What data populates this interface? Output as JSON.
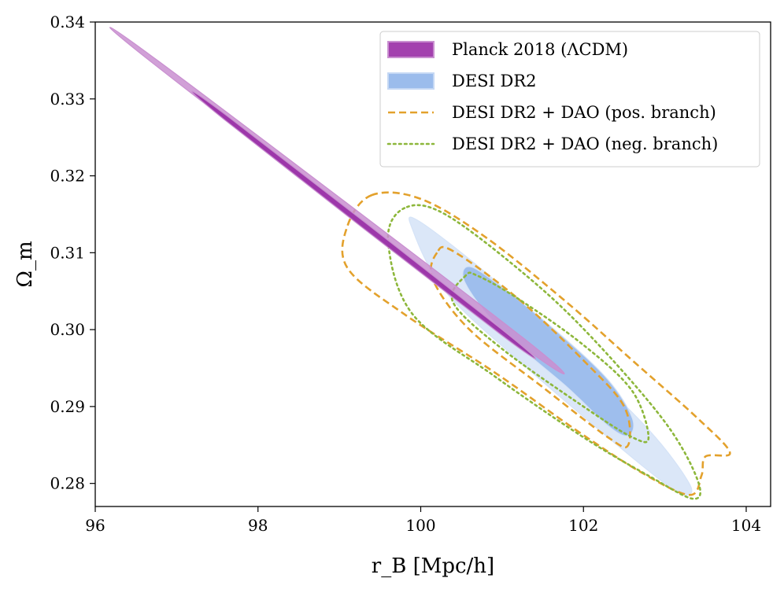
{
  "chart_data": {
    "type": "contour",
    "title": "",
    "xlabel": "r_B [Mpc/h]",
    "ylabel": "Ω_m",
    "xlim": [
      96,
      104.3
    ],
    "ylim": [
      0.277,
      0.34
    ],
    "xticks": [
      96,
      98,
      100,
      102,
      104
    ],
    "yticks": [
      0.28,
      0.29,
      0.3,
      0.31,
      0.32,
      0.33,
      0.34
    ],
    "xtick_labels": [
      "96",
      "98",
      "100",
      "102",
      "104"
    ],
    "ytick_labels": [
      "0.28",
      "0.29",
      "0.30",
      "0.31",
      "0.32",
      "0.33",
      "0.34"
    ],
    "series": [
      {
        "name": "Planck 2018 (ΛCDM)",
        "style": "filled",
        "inner_color": "#9a32a8",
        "outer_color": "#c98fd0",
        "contours": [
          {
            "level": "68%",
            "points": [
              [
                97.6,
                0.3272
              ],
              [
                97.62,
                0.3278
              ],
              [
                101.0,
                0.3
              ],
              [
                100.98,
                0.2994
              ]
            ]
          },
          {
            "level": "95%",
            "points": [
              [
                96.7,
                0.3347
              ],
              [
                96.78,
                0.3349
              ],
              [
                101.25,
                0.299
              ],
              [
                101.16,
                0.2985
              ]
            ]
          }
        ]
      },
      {
        "name": "DESI DR2",
        "style": "filled",
        "inner_color": "#9bbcec",
        "outer_color": "#d5e3f7",
        "contours": [
          {
            "level": "68%",
            "points": [
              [
                100.6,
                0.3082
              ],
              [
                100.55,
                0.306
              ],
              [
                101.0,
                0.2998
              ],
              [
                101.8,
                0.2925
              ],
              [
                102.3,
                0.2875
              ],
              [
                102.55,
                0.2862
              ],
              [
                102.6,
                0.2885
              ],
              [
                102.3,
                0.2935
              ],
              [
                101.7,
                0.2995
              ],
              [
                101.0,
                0.3055
              ]
            ]
          },
          {
            "level": "95%",
            "points": [
              [
                99.98,
                0.3141
              ],
              [
                99.9,
                0.313
              ],
              [
                100.3,
                0.305
              ],
              [
                101.2,
                0.296
              ],
              [
                102.3,
                0.286
              ],
              [
                103.0,
                0.28
              ],
              [
                103.25,
                0.2785
              ],
              [
                103.3,
                0.28
              ],
              [
                102.8,
                0.287
              ],
              [
                101.8,
                0.2975
              ],
              [
                100.9,
                0.3065
              ]
            ]
          }
        ]
      },
      {
        "name": "DESI DR2 + DAO (pos. branch)",
        "style": "dashed",
        "color": "#e3a12c",
        "contours": [
          {
            "level": "68%",
            "points": [
              [
                100.2,
                0.31
              ],
              [
                100.15,
                0.3065
              ],
              [
                100.6,
                0.3
              ],
              [
                101.5,
                0.2925
              ],
              [
                102.3,
                0.286
              ],
              [
                102.55,
                0.285
              ],
              [
                102.5,
                0.29
              ],
              [
                102.0,
                0.296
              ],
              [
                101.2,
                0.304
              ],
              [
                100.4,
                0.3102
              ]
            ]
          },
          {
            "level": "95%",
            "points": [
              [
                99.4,
                0.3175
              ],
              [
                99.1,
                0.3135
              ],
              [
                99.1,
                0.308
              ],
              [
                99.8,
                0.302
              ],
              [
                100.9,
                0.2945
              ],
              [
                101.9,
                0.287
              ],
              [
                102.7,
                0.2815
              ],
              [
                103.3,
                0.2785
              ],
              [
                103.45,
                0.281
              ],
              [
                103.5,
                0.2835
              ],
              [
                103.8,
                0.284
              ],
              [
                103.4,
                0.2885
              ],
              [
                102.6,
                0.296
              ],
              [
                101.8,
                0.3035
              ],
              [
                100.8,
                0.312
              ],
              [
                100.0,
                0.317
              ]
            ]
          }
        ]
      },
      {
        "name": "DESI DR2 + DAO (neg. branch)",
        "style": "dotted",
        "color": "#8db73b",
        "contours": [
          {
            "level": "68%",
            "points": [
              [
                100.55,
                0.307
              ],
              [
                100.4,
                0.3035
              ],
              [
                101.0,
                0.2975
              ],
              [
                102.0,
                0.29
              ],
              [
                102.6,
                0.286
              ],
              [
                102.8,
                0.286
              ],
              [
                102.6,
                0.292
              ],
              [
                102.0,
                0.298
              ],
              [
                101.2,
                0.304
              ],
              [
                100.7,
                0.307
              ]
            ]
          },
          {
            "level": "95%",
            "points": [
              [
                99.8,
                0.3158
              ],
              [
                99.6,
                0.3115
              ],
              [
                99.9,
                0.302
              ],
              [
                100.9,
                0.294
              ],
              [
                102.0,
                0.286
              ],
              [
                102.8,
                0.281
              ],
              [
                103.35,
                0.278
              ],
              [
                103.4,
                0.2805
              ],
              [
                103.0,
                0.288
              ],
              [
                102.1,
                0.299
              ],
              [
                101.3,
                0.307
              ],
              [
                100.3,
                0.315
              ]
            ]
          }
        ]
      }
    ],
    "legend": {
      "position": "top-right",
      "entries": [
        {
          "label": "Planck 2018 (ΛCDM)",
          "kind": "filled",
          "fill": "#a341ae",
          "edge": "#c98fd0"
        },
        {
          "label": "DESI DR2",
          "kind": "filled",
          "fill": "#9bbcec",
          "edge": "#c5d8f4"
        },
        {
          "label": "DESI DR2 + DAO (pos. branch)",
          "kind": "dashed",
          "color": "#e3a12c"
        },
        {
          "label": "DESI DR2 + DAO (neg. branch)",
          "kind": "dotted",
          "color": "#8db73b"
        }
      ]
    }
  }
}
